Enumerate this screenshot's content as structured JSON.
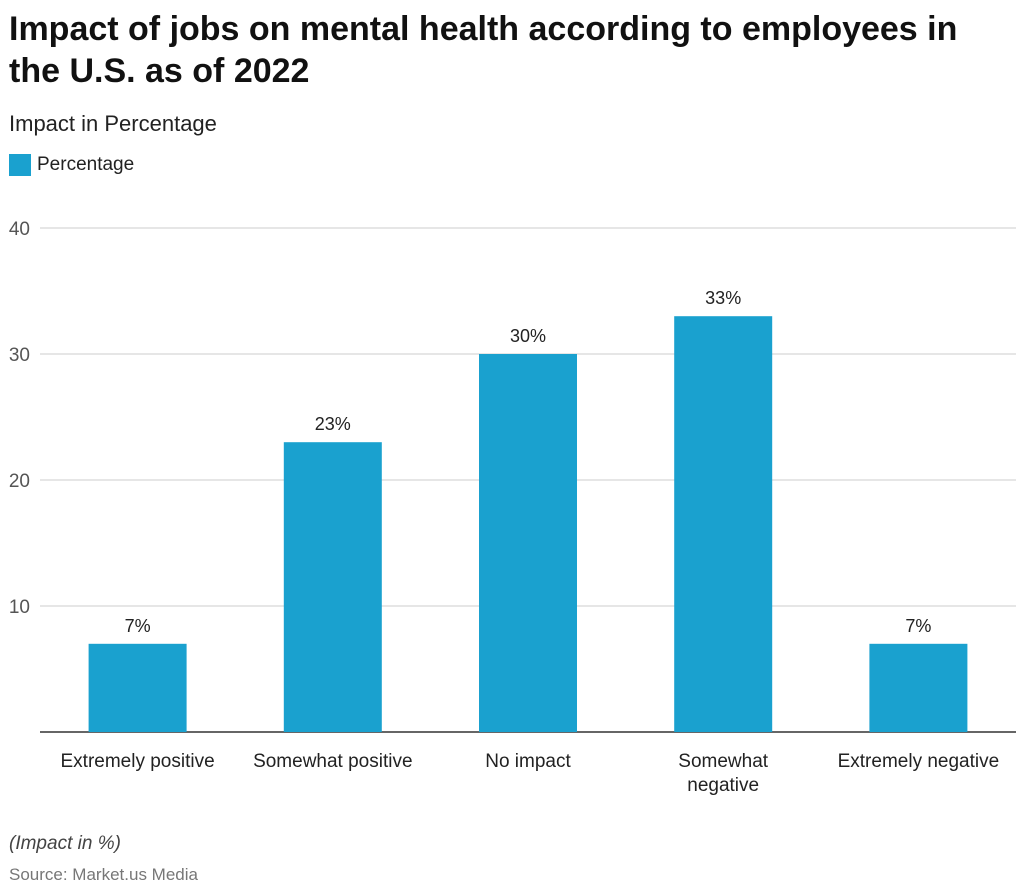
{
  "title": "Impact of jobs on mental health according to employees in the U.S. as of 2022",
  "subtitle": "Impact in Percentage",
  "legend": {
    "label": "Percentage"
  },
  "colors": {
    "bar": "#1aa1cf",
    "grid": "#cccccc",
    "axis": "#333333",
    "tick_text": "#555555",
    "label_text": "#222222"
  },
  "chart_data": {
    "type": "bar",
    "categories": [
      [
        "Extremely positive"
      ],
      [
        "Somewhat positive"
      ],
      [
        "No impact"
      ],
      [
        "Somewhat",
        "negative"
      ],
      [
        "Extremely negative"
      ]
    ],
    "series": [
      {
        "name": "Percentage",
        "values": [
          7,
          23,
          30,
          33,
          7
        ]
      }
    ],
    "data_labels": [
      "7%",
      "23%",
      "30%",
      "33%",
      "7%"
    ],
    "yticks": [
      10,
      20,
      30,
      40
    ],
    "ylim": [
      0,
      40
    ],
    "grid": true,
    "legend_position": "top-left"
  },
  "footer": {
    "note": "(Impact in %)",
    "source": "Source: Market.us Media"
  }
}
